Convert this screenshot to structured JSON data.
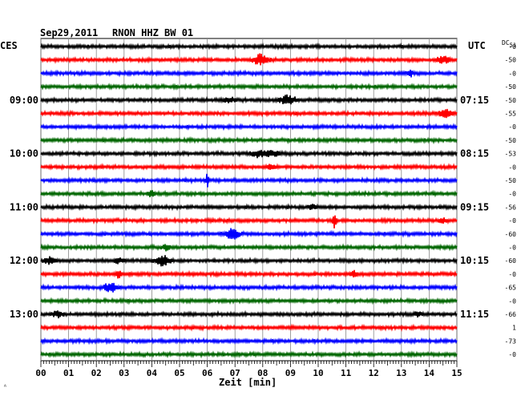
{
  "header": {
    "date": "Sep29,2011",
    "station": "RNON HHZ BW 01",
    "left_tz": "CES",
    "right_tz": "UTC",
    "dc_label": "DC",
    "dc_sub": "51"
  },
  "chart_data": {
    "type": "line",
    "title": "Sep29,2011   RNON HHZ BW 01",
    "xlabel": "Zeit [min]",
    "x_ticks": [
      "00",
      "01",
      "02",
      "03",
      "04",
      "05",
      "06",
      "07",
      "08",
      "09",
      "10",
      "11",
      "12",
      "13",
      "14",
      "15"
    ],
    "xlim": [
      0,
      15
    ],
    "grid": "vertical",
    "trace_colors": [
      "#000000",
      "#ff0000",
      "#0000ff",
      "#006600"
    ],
    "left_time_labels": [
      {
        "trace": 4,
        "text": "09:00"
      },
      {
        "trace": 8,
        "text": "10:00"
      },
      {
        "trace": 12,
        "text": "11:00"
      },
      {
        "trace": 16,
        "text": "12:00"
      },
      {
        "trace": 20,
        "text": "13:00"
      }
    ],
    "right_time_labels": [
      {
        "trace": 4,
        "text": "07:15"
      },
      {
        "trace": 8,
        "text": "08:15"
      },
      {
        "trace": 12,
        "text": "09:15"
      },
      {
        "trace": 16,
        "text": "10:15"
      },
      {
        "trace": 20,
        "text": "11:15"
      }
    ],
    "dc_offsets": [
      "-0",
      "-50",
      "-0",
      "-50",
      "-50",
      "-55",
      "-0",
      "-50",
      "-53",
      "-0",
      "-50",
      "-0",
      "-56",
      "-0",
      "-60",
      "-0",
      "-60",
      "-0",
      "-65",
      "-0",
      "-66",
      "1",
      "-73",
      "-0"
    ]
  }
}
